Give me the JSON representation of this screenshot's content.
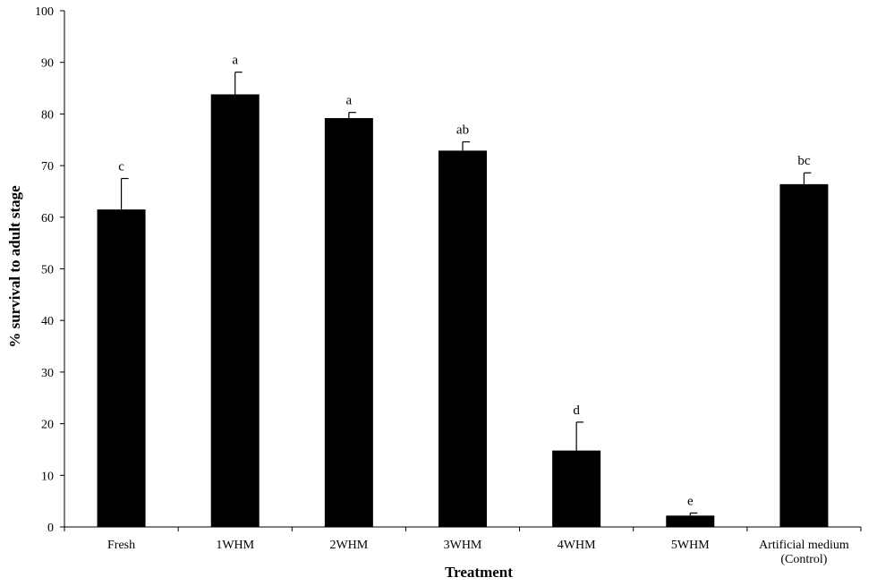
{
  "chart_data": {
    "type": "bar",
    "xlabel": "Treatment",
    "ylabel": "% survival to adult stage",
    "ylim": [
      0,
      100
    ],
    "yticks": [
      0,
      10,
      20,
      30,
      40,
      50,
      60,
      70,
      80,
      90,
      100
    ],
    "categories": [
      "Fresh",
      "1WHM",
      "2WHM",
      "3WHM",
      "4WHM",
      "5WHM",
      "Artificial medium (Control)"
    ],
    "category_lines": [
      [
        "Fresh"
      ],
      [
        "1WHM"
      ],
      [
        "2WHM"
      ],
      [
        "3WHM"
      ],
      [
        "4WHM"
      ],
      [
        "5WHM"
      ],
      [
        "Artificial medium",
        "(Control)"
      ]
    ],
    "values": [
      61.5,
      83.8,
      79.2,
      72.9,
      14.8,
      2.2,
      66.4
    ],
    "error_upper": [
      6.0,
      4.3,
      1.1,
      1.7,
      5.5,
      0.5,
      2.2
    ],
    "significance_letters": [
      "c",
      "a",
      "a",
      "ab",
      "d",
      "e",
      "bc"
    ],
    "bar_color": "#000000",
    "grid": false,
    "legend": "none"
  }
}
